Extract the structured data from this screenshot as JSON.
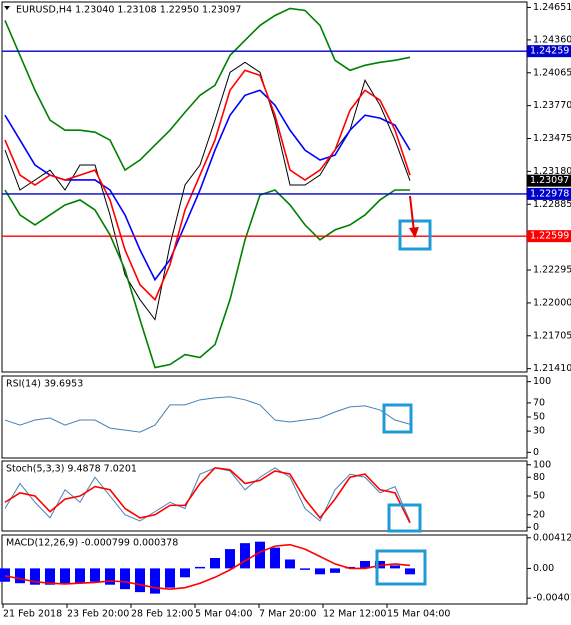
{
  "chart_data": [
    {
      "type": "line",
      "title": "EURUSD,H4  1.23040 1.23108 1.22950 1.23097",
      "ylim": [
        1.2138,
        1.247
      ],
      "yticks": [
        1.24651,
        {
          "value": 1.2436,
          "label": "1.24360"
        },
        1.24065,
        {
          "value": 1.2377,
          "label": "1.23770"
        },
        1.23475,
        {
          "value": 1.2318,
          "label": "1.23180"
        },
        1.22885,
        1.22295,
        {
          "value": 1.22,
          "label": "1.22000"
        },
        1.21705,
        {
          "value": 1.2141,
          "label": "1.21410"
        }
      ],
      "levels": [
        {
          "value": 1.24259,
          "color": "#0000cc"
        },
        {
          "value": 1.22978,
          "color": "#0000cc"
        },
        {
          "value": 1.22599,
          "color": "#ff0000"
        }
      ],
      "last_price": {
        "value": 1.23097,
        "color": "#000000"
      },
      "series": [
        {
          "color": "#000000",
          "values": [
            1.23371,
            1.23013,
            1.23103,
            1.23192,
            1.23013,
            1.23237,
            1.23237,
            1.22789,
            1.22252,
            1.22029,
            1.2185,
            1.22521,
            1.23058,
            1.23237,
            1.2364,
            1.24069,
            1.24159,
            1.24069,
            1.2364,
            1.23058,
            1.23058,
            1.23147,
            1.23371,
            1.2355,
            1.23998,
            1.23774,
            1.23461,
            1.23097
          ]
        },
        {
          "color": "#008000",
          "values": [
            1.24535,
            1.24221,
            1.23908,
            1.2364,
            1.2355,
            1.2355,
            1.23532,
            1.23461,
            1.23192,
            1.23282,
            1.23416,
            1.2355,
            1.23711,
            1.23863,
            1.23953,
            1.24221,
            1.24356,
            1.2449,
            1.24579,
            1.24642,
            1.24624,
            1.2449,
            1.24177,
            1.24087,
            1.24132,
            1.24159,
            1.24177,
            1.24204
          ]
        },
        {
          "color": "#008000",
          "values": [
            1.23013,
            1.22789,
            1.227,
            1.22789,
            1.22879,
            1.22924,
            1.22834,
            1.2261,
            1.22297,
            1.2185,
            1.2142,
            1.21447,
            1.21536,
            1.2151,
            1.21626,
            1.22029,
            1.22566,
            1.22968,
            1.23013,
            1.22879,
            1.227,
            1.22566,
            1.22655,
            1.227,
            1.22789,
            1.22924,
            1.23013,
            1.23013
          ]
        },
        {
          "color": "#0000ff",
          "values": [
            1.23684,
            1.23461,
            1.23237,
            1.23147,
            1.23103,
            1.23103,
            1.23103,
            1.23013,
            1.22789,
            1.22476,
            1.22208,
            1.22387,
            1.227,
            1.23013,
            1.23371,
            1.23684,
            1.23863,
            1.23908,
            1.23774,
            1.2355,
            1.23371,
            1.23282,
            1.23326,
            1.2355,
            1.23684,
            1.23658,
            1.23595,
            1.23371
          ]
        },
        {
          "color": "#ff0000",
          "values": [
            1.23461,
            1.23147,
            1.23058,
            1.23147,
            1.23103,
            1.23147,
            1.23192,
            1.22924,
            1.22476,
            1.22163,
            1.22029,
            1.22342,
            1.22834,
            1.23147,
            1.23461,
            1.23908,
            1.24087,
            1.24042,
            1.23684,
            1.23192,
            1.23103,
            1.23192,
            1.23371,
            1.23729,
            1.23908,
            1.23819,
            1.2355,
            1.23147
          ]
        }
      ]
    },
    {
      "type": "line",
      "title": "RSI(14) 39.6953",
      "ylim": [
        -8,
        108
      ],
      "yticks": [
        0,
        30,
        50,
        70,
        100
      ],
      "series": [
        {
          "color": "#4682b4",
          "values": [
            45.7,
            38.6,
            45.7,
            48.6,
            38.6,
            45.7,
            45.7,
            34.3,
            31.4,
            28.6,
            38.6,
            67.1,
            67.1,
            74.3,
            77.1,
            78.6,
            74.3,
            67.1,
            45.7,
            42.9,
            45.7,
            48.6,
            57.1,
            64.3,
            65.7,
            60,
            45.7,
            39.7
          ]
        }
      ]
    },
    {
      "type": "line",
      "title": "Stoch(5,3,3) 9.4878 7.0201",
      "ylim": [
        -6,
        106
      ],
      "yticks": [
        0,
        20,
        50,
        80,
        100
      ],
      "series": [
        {
          "color": "#4682b4",
          "values": [
            30,
            70,
            40,
            15,
            60,
            40,
            80,
            50,
            20,
            10,
            25,
            40,
            30,
            85,
            95,
            90,
            60,
            80,
            95,
            80,
            30,
            10,
            60,
            85,
            80,
            55,
            65,
            9.5
          ]
        },
        {
          "color": "#ff0000",
          "values": [
            40,
            55,
            50,
            25,
            45,
            50,
            65,
            60,
            30,
            15,
            20,
            35,
            35,
            70,
            95,
            92,
            70,
            75,
            90,
            85,
            45,
            15,
            45,
            80,
            85,
            60,
            55,
            7
          ]
        }
      ]
    },
    {
      "type": "macd",
      "title": "MACD(12,26,9) -0.000799 0.000378",
      "ylim": [
        -0.0048,
        0.0045
      ],
      "yticks": [
        0.004125,
        {
          "value": 0,
          "label": "0.00"
        },
        -0.004013
      ],
      "xlabels": [
        "21 Feb 2018",
        "23 Feb 20:00",
        "28 Feb 12:00",
        "5 Mar 04:00",
        "7 Mar 20:00",
        "12 Mar 12:00",
        "15 Mar 04:00"
      ],
      "series": [
        {
          "color": "#0000ff",
          "values": [
            -0.0018,
            -0.002,
            -0.0022,
            -0.0022,
            -0.0021,
            -0.002,
            -0.0018,
            -0.0022,
            -0.0028,
            -0.0032,
            -0.0034,
            -0.0026,
            -0.0012,
            0.0002,
            0.0014,
            0.0026,
            0.0034,
            0.0036,
            0.0028,
            0.0012,
            -0.0002,
            -0.0008,
            -0.0006,
            0.0002,
            0.001,
            0.001,
            0.0004,
            -0.0008
          ]
        },
        {
          "color": "#ff0000",
          "values": [
            -0.001,
            -0.0014,
            -0.0018,
            -0.002,
            -0.0021,
            -0.002,
            -0.0019,
            -0.0017,
            -0.0018,
            -0.0022,
            -0.0026,
            -0.0028,
            -0.0026,
            -0.002,
            -0.0012,
            -0.0002,
            0.001,
            0.0022,
            0.003,
            0.0032,
            0.0026,
            0.0016,
            0.0006,
            0,
            0,
            0.0004,
            0.0006,
            0.0004
          ]
        }
      ]
    }
  ]
}
